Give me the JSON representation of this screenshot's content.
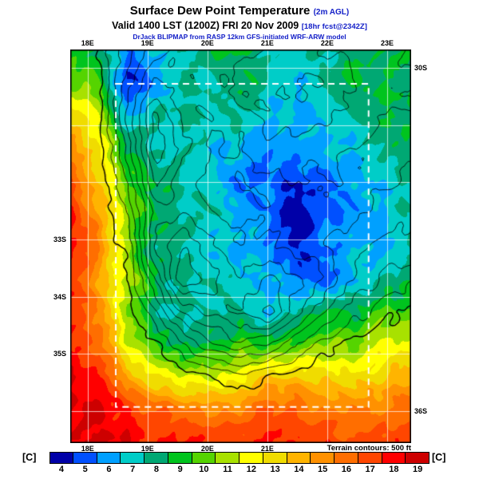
{
  "header": {
    "title": "Surface Dew Point Temperature",
    "title_suffix": "(2m AGL)",
    "valid_line": "Valid 1400 LST (1200Z) FRI 20 Nov 2009",
    "forecast_note": "[18hr fcst@2342Z]",
    "model_line": "DrJack BLIPMAP from RASP 12km GFS-initiated WRF-ARW model"
  },
  "axes": {
    "top": [
      {
        "label": "18E",
        "lon": 18
      },
      {
        "label": "19E",
        "lon": 19
      },
      {
        "label": "20E",
        "lon": 20
      },
      {
        "label": "21E",
        "lon": 21
      },
      {
        "label": "22E",
        "lon": 22
      },
      {
        "label": "23E",
        "lon": 23
      }
    ],
    "bottom": [
      {
        "label": "18E",
        "lon": 18
      },
      {
        "label": "19E",
        "lon": 19
      },
      {
        "label": "20E",
        "lon": 20
      },
      {
        "label": "21E",
        "lon": 21
      }
    ],
    "left": [
      {
        "label": "33S",
        "lat": 33
      },
      {
        "label": "34S",
        "lat": 34
      },
      {
        "label": "35S",
        "lat": 35
      }
    ],
    "right": [
      {
        "label": "30S",
        "lat": 30
      },
      {
        "label": "36S",
        "lat": 36
      }
    ]
  },
  "footer": {
    "terrain_note": "Terrain contours: 500 ft"
  },
  "colorbar": {
    "unit_left": "[C]",
    "unit_right": "[C]",
    "ticks": [
      "4",
      "5",
      "6",
      "7",
      "8",
      "9",
      "10",
      "11",
      "12",
      "13",
      "14",
      "15",
      "16",
      "17",
      "18",
      "19"
    ]
  },
  "chart_data": {
    "type": "heatmap",
    "title": "Surface Dew Point Temperature (2m AGL)",
    "valid": "1400 LST (1200Z) FRI 20 Nov 2009",
    "forecast_note": "18hr fcst@2342Z",
    "units": "C",
    "value_min": 4,
    "value_max": 19,
    "colorbar_ticks": [
      4,
      5,
      6,
      7,
      8,
      9,
      10,
      11,
      12,
      13,
      14,
      15,
      16,
      17,
      18,
      19
    ],
    "palette": [
      "#0000A8",
      "#0050FF",
      "#00A0FF",
      "#00CDC8",
      "#00A873",
      "#00C41E",
      "#55D400",
      "#A8E100",
      "#FFFF00",
      "#F0DC00",
      "#FFB400",
      "#FF9100",
      "#FF6E00",
      "#FF4600",
      "#FF0000",
      "#CD0000"
    ],
    "lon_range": [
      17.71,
      23.4
    ],
    "lat_range": [
      29.68,
      36.56
    ],
    "lon_gridlines": [
      18,
      19,
      20,
      21,
      22,
      23
    ],
    "lat_gridlines": [
      30,
      31,
      32,
      33,
      34,
      35,
      36
    ],
    "inner_domain_box": {
      "lon": [
        18.47,
        22.69
      ],
      "lat": [
        30.28,
        35.93
      ]
    },
    "terrain_contour_interval_ft": 500,
    "dewpoint_grid_c": [
      [
        9,
        9,
        6,
        7,
        8,
        9,
        9,
        8,
        8,
        8,
        9,
        9,
        9
      ],
      [
        11,
        10,
        5,
        6,
        8,
        8,
        9,
        8,
        7,
        8,
        9,
        9,
        9
      ],
      [
        14,
        12,
        7,
        8,
        8,
        8,
        8,
        7,
        7,
        7,
        8,
        9,
        9
      ],
      [
        16,
        13,
        9,
        8,
        8,
        7,
        7,
        6,
        6,
        7,
        7,
        8,
        9
      ],
      [
        17,
        14,
        10,
        9,
        8,
        7,
        6,
        6,
        5,
        6,
        7,
        7,
        8
      ],
      [
        18,
        15,
        11,
        9,
        8,
        8,
        7,
        6,
        4,
        6,
        6,
        7,
        8
      ],
      [
        18,
        16,
        11,
        8,
        8,
        7,
        7,
        6,
        5,
        6,
        7,
        7,
        8
      ],
      [
        18,
        15,
        12,
        9,
        8,
        8,
        7,
        7,
        6,
        5,
        7,
        8,
        9
      ],
      [
        18,
        16,
        11,
        8,
        8,
        8,
        8,
        7,
        8,
        9,
        9,
        10,
        10
      ],
      [
        18,
        17,
        12,
        10,
        9,
        9,
        10,
        10,
        10,
        11,
        11,
        12,
        12
      ],
      [
        19,
        18,
        15,
        13,
        12,
        12,
        13,
        14,
        14,
        14,
        13,
        14,
        15
      ],
      [
        19,
        19,
        18,
        17,
        16,
        16,
        16,
        17,
        17,
        16,
        16,
        16,
        17
      ],
      [
        19,
        19,
        19,
        18,
        18,
        18,
        18,
        18,
        18,
        18,
        17,
        18,
        18
      ]
    ],
    "terrain_grid_ft": [
      [
        0,
        600,
        1800,
        2800,
        3200,
        3300,
        3400,
        3600,
        3600,
        3500,
        3400,
        3100,
        2800
      ],
      [
        0,
        400,
        2200,
        3600,
        3100,
        3300,
        3600,
        3900,
        4100,
        3900,
        3600,
        3300,
        3000
      ],
      [
        0,
        300,
        2600,
        4600,
        3200,
        3000,
        3300,
        3600,
        3900,
        3600,
        3300,
        3000,
        2900
      ],
      [
        0,
        200,
        2100,
        5000,
        3600,
        3000,
        3000,
        3300,
        3100,
        3300,
        3000,
        2800,
        2700
      ],
      [
        0,
        100,
        1600,
        4200,
        3100,
        2800,
        3000,
        2800,
        3000,
        3000,
        2800,
        2600,
        2400
      ],
      [
        0,
        0,
        1100,
        3200,
        3600,
        3000,
        2800,
        3000,
        2600,
        2800,
        2600,
        2300,
        2100
      ],
      [
        0,
        0,
        600,
        3600,
        4600,
        3600,
        3000,
        3200,
        2800,
        2500,
        2200,
        1900,
        1700
      ],
      [
        0,
        0,
        300,
        2600,
        5000,
        4100,
        3600,
        4100,
        3600,
        3000,
        2000,
        1400,
        1100
      ],
      [
        0,
        0,
        100,
        1500,
        3100,
        3600,
        4100,
        4600,
        3100,
        2000,
        1200,
        700,
        400
      ],
      [
        0,
        0,
        0,
        400,
        1400,
        2400,
        2900,
        2400,
        1400,
        700,
        300,
        150,
        80
      ],
      [
        0,
        0,
        0,
        50,
        250,
        450,
        700,
        450,
        250,
        80,
        0,
        0,
        0
      ],
      [
        0,
        0,
        0,
        0,
        0,
        0,
        0,
        0,
        0,
        0,
        0,
        0,
        0
      ],
      [
        0,
        0,
        0,
        0,
        0,
        0,
        0,
        0,
        0,
        0,
        0,
        0,
        0
      ]
    ]
  }
}
